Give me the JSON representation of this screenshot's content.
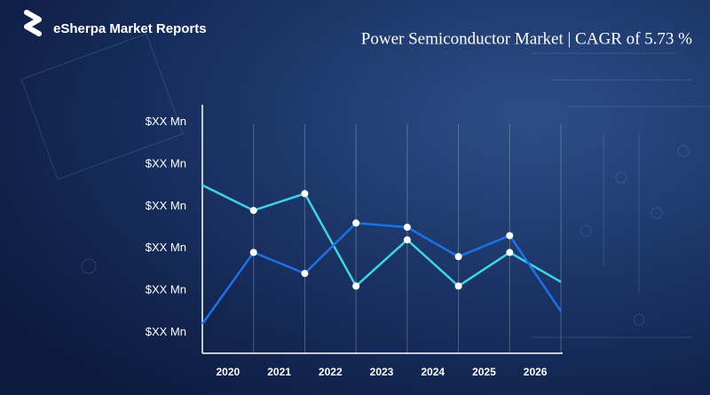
{
  "brand": "eSherpa Market Reports",
  "chart_data": {
    "type": "line",
    "title": "Power Semiconductor Market | CAGR of 5.73 %",
    "x": [
      2019.5,
      2020.5,
      2021.5,
      2022.5,
      2023.5,
      2024.5,
      2025.5,
      2026.5
    ],
    "xlim": [
      2019.5,
      2026.5
    ],
    "xticks": [
      2020,
      2021,
      2022,
      2023,
      2024,
      2025,
      2026
    ],
    "ylim": [
      0.5,
      6.5
    ],
    "yticks": [
      {
        "value": 1,
        "label": "$XX Mn"
      },
      {
        "value": 2,
        "label": "$XX Mn"
      },
      {
        "value": 3,
        "label": "$XX Mn"
      },
      {
        "value": 4,
        "label": "$XX Mn"
      },
      {
        "value": 5,
        "label": "$XX Mn"
      },
      {
        "value": 6,
        "label": "$XX Mn"
      }
    ],
    "series": [
      {
        "color": "#3fd3e6",
        "values": [
          4.5,
          3.9,
          4.3,
          2.1,
          3.2,
          2.1,
          2.9,
          2.2
        ]
      },
      {
        "color": "#1c72e8",
        "values": [
          1.2,
          2.9,
          2.4,
          3.6,
          3.5,
          2.8,
          3.3,
          1.5
        ]
      }
    ]
  }
}
